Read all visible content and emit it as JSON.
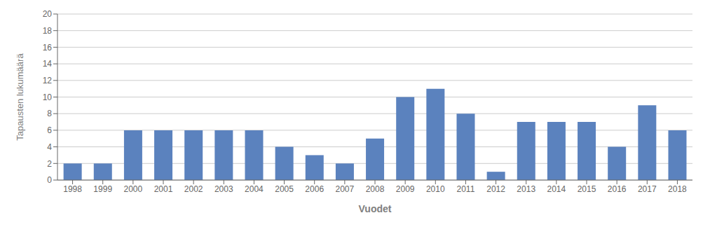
{
  "chart_data": {
    "type": "bar",
    "xlabel": "Vuodet",
    "ylabel": "Tapausten lukumäärä",
    "categories": [
      "1998",
      "1999",
      "2000",
      "2001",
      "2002",
      "2003",
      "2004",
      "2005",
      "2006",
      "2007",
      "2008",
      "2009",
      "2010",
      "2011",
      "2012",
      "2013",
      "2014",
      "2015",
      "2016",
      "2017",
      "2018"
    ],
    "values": [
      2,
      2,
      6,
      6,
      6,
      6,
      6,
      4,
      3,
      2,
      5,
      10,
      11,
      8,
      1,
      7,
      7,
      7,
      4,
      9,
      6
    ],
    "color": "#5B82BE",
    "ylim": [
      0,
      20
    ],
    "yticks": [
      0,
      2,
      4,
      6,
      8,
      10,
      12,
      14,
      16,
      18,
      20
    ],
    "grid": true
  }
}
